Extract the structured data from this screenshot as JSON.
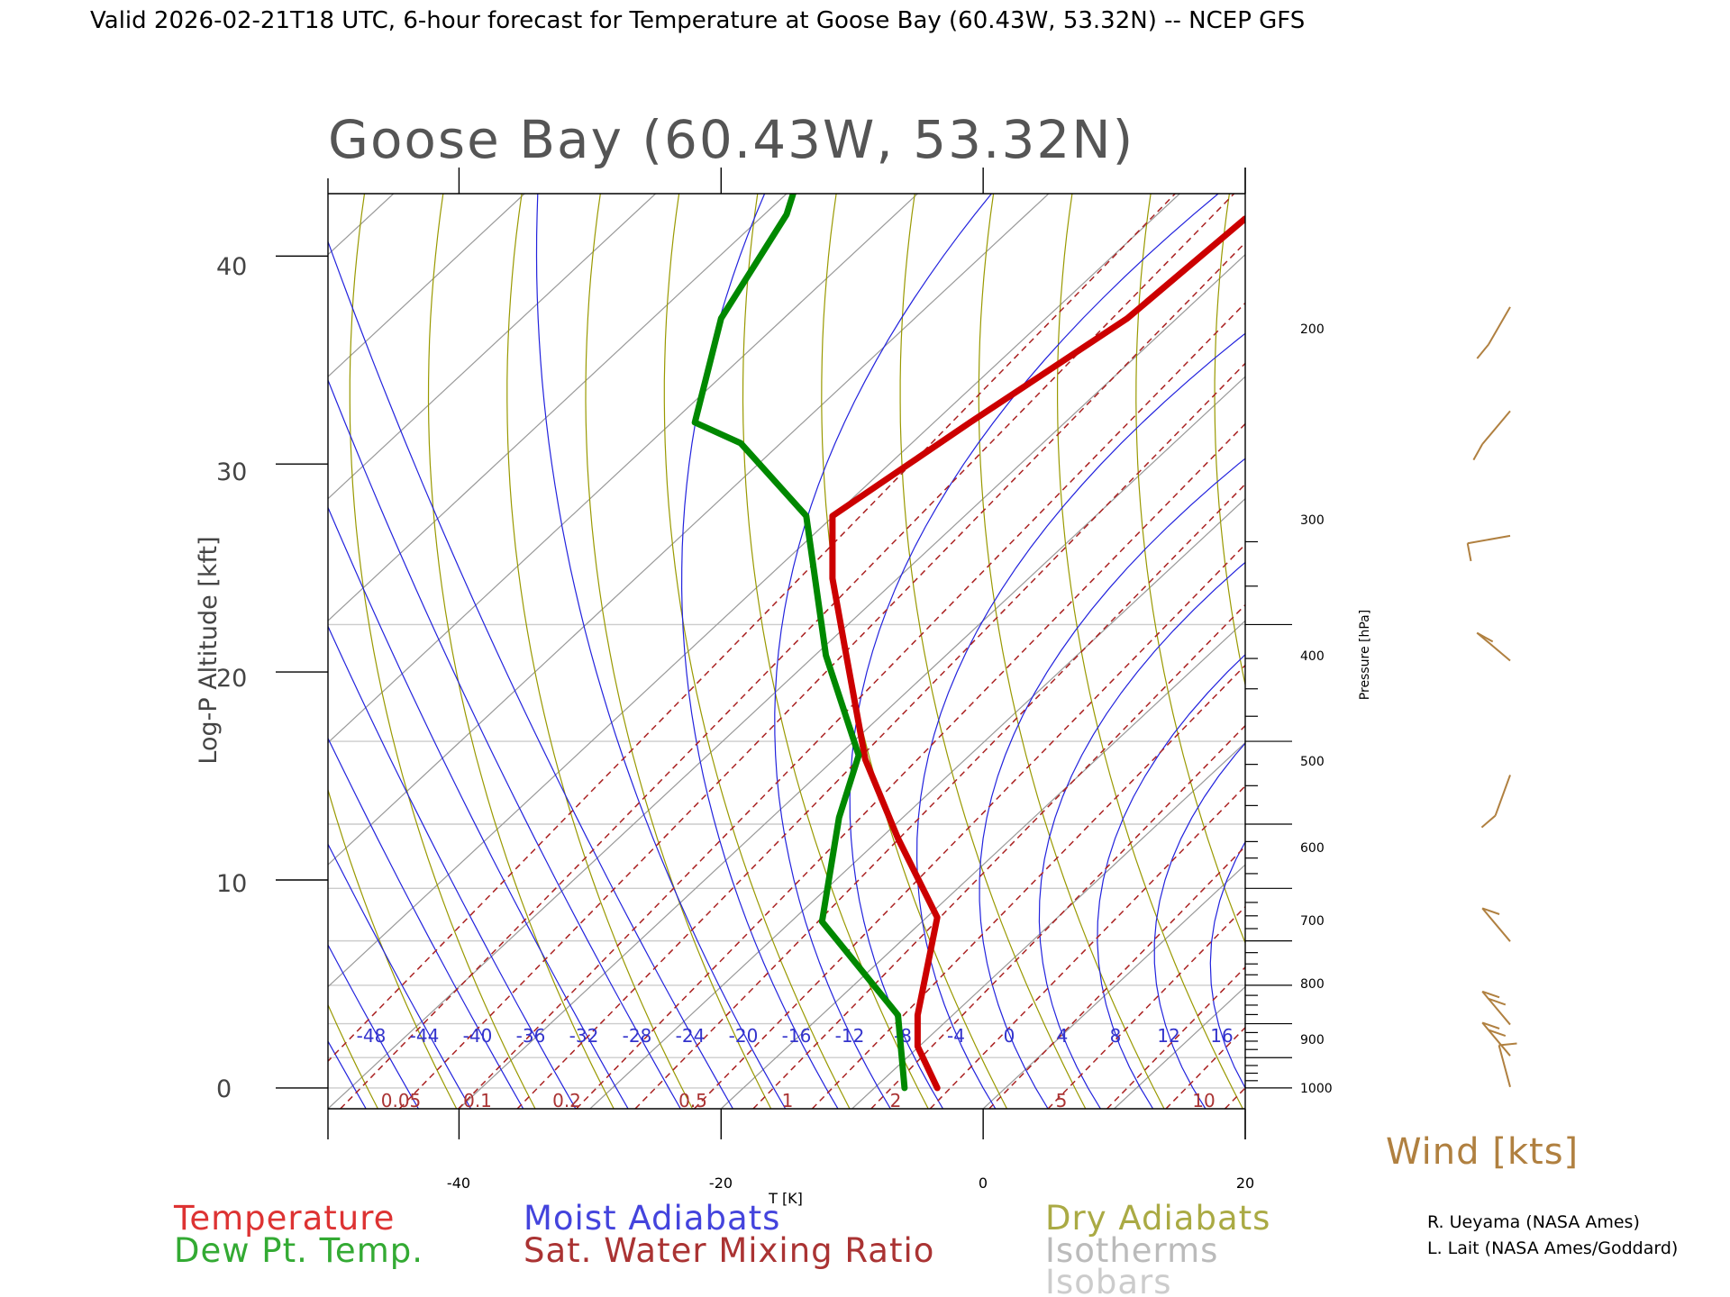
{
  "header": {
    "title": "Valid 2026-02-21T18 UTC, 6-hour forecast for Temperature at Goose Bay (60.43W, 53.32N) -- NCEP GFS"
  },
  "chart_data": {
    "type": "line",
    "title": "Goose Bay (60.43W, 53.32N)",
    "xlabel": "T [K]",
    "ylabel": "Log-P Altitude [kft]",
    "y2label": "Pressure [hPa]",
    "xlim": [
      -50,
      20
    ],
    "ylim": [
      -1,
      43
    ],
    "x_ticks": [
      -40,
      -20,
      0,
      20
    ],
    "y_ticks": [
      0,
      10,
      20,
      30,
      40
    ],
    "pressure_ticks": [
      1000,
      900,
      800,
      700,
      600,
      500,
      400,
      300,
      200
    ],
    "moist_adiabat_labels": [
      "-48",
      "-44",
      "-40",
      "-36",
      "-32",
      "-28",
      "-24",
      "-20",
      "-16",
      "-12",
      "-8",
      "-4",
      "0",
      "4",
      "8",
      "12",
      "16"
    ],
    "mixing_ratio_labels": [
      "0.05",
      "0.1",
      "0.2",
      "0.5",
      "1",
      "2",
      "5",
      "10"
    ],
    "series": [
      {
        "name": "Temperature",
        "color": "#cc0000",
        "points": [
          {
            "x": -3.5,
            "y": 0.0
          },
          {
            "x": -5.0,
            "y": 2.0
          },
          {
            "x": -5.0,
            "y": 3.5
          },
          {
            "x": -3.5,
            "y": 8.2
          },
          {
            "x": -6.5,
            "y": 12.0
          },
          {
            "x": -9.0,
            "y": 15.8
          },
          {
            "x": -10.5,
            "y": 21.0
          },
          {
            "x": -11.5,
            "y": 24.5
          },
          {
            "x": -11.5,
            "y": 27.5
          },
          {
            "x": -1.0,
            "y": 32.0
          },
          {
            "x": 11.0,
            "y": 37.0
          },
          {
            "x": 20.0,
            "y": 41.8
          }
        ]
      },
      {
        "name": "Dew Pt. Temp.",
        "color": "#008800",
        "points": [
          {
            "x": -6.0,
            "y": 0.0
          },
          {
            "x": -6.5,
            "y": 3.5
          },
          {
            "x": -12.3,
            "y": 8.0
          },
          {
            "x": -11.0,
            "y": 13.0
          },
          {
            "x": -9.5,
            "y": 16.0
          },
          {
            "x": -12.0,
            "y": 20.8
          },
          {
            "x": -13.5,
            "y": 27.5
          },
          {
            "x": -18.5,
            "y": 31.0
          },
          {
            "x": -22.0,
            "y": 32.0
          },
          {
            "x": -20.0,
            "y": 37.0
          },
          {
            "x": -15.0,
            "y": 42.0
          },
          {
            "x": -14.5,
            "y": 43.0
          }
        ]
      }
    ],
    "wind_barbs": [
      {
        "y": 38.5,
        "shaft_deg": 150,
        "barbs": 1
      },
      {
        "y": 33.5,
        "shaft_deg": 140,
        "barbs": 1
      },
      {
        "y": 27.5,
        "shaft_deg": 100,
        "barbs": 1
      },
      {
        "y": 21.5,
        "shaft_deg": 50,
        "barbs": 1
      },
      {
        "y": 16.0,
        "shaft_deg": 160,
        "barbs": 1
      },
      {
        "y": 8.0,
        "shaft_deg": 40,
        "barbs": 1
      },
      {
        "y": 4.0,
        "shaft_deg": 40,
        "barbs": 2
      },
      {
        "y": 2.5,
        "shaft_deg": 40,
        "barbs": 2
      },
      {
        "y": 1.0,
        "shaft_deg": 15,
        "barbs": 1
      }
    ]
  },
  "legend": {
    "temperature": {
      "label": "Temperature",
      "color": "#dd3333"
    },
    "dewpoint": {
      "label": "Dew Pt. Temp.",
      "color": "#33aa33"
    },
    "moist_adiabats": {
      "label": "Moist Adiabats",
      "color": "#4444dd"
    },
    "mixing_ratio": {
      "label": "Sat. Water Mixing Ratio",
      "color": "#aa3333"
    },
    "dry_adiabats": {
      "label": "Dry Adiabats",
      "color": "#aaaa44"
    },
    "isotherms": {
      "label": "Isotherms",
      "color": "#bbbbbb"
    },
    "isobars": {
      "label": "Isobars",
      "color": "#cccccc"
    }
  },
  "wind": {
    "label": "Wind [kts]",
    "color": "#b08040"
  },
  "credits": {
    "line1": "R. Ueyama (NASA Ames)",
    "line2": "L. Lait (NASA Ames/Goddard)"
  }
}
